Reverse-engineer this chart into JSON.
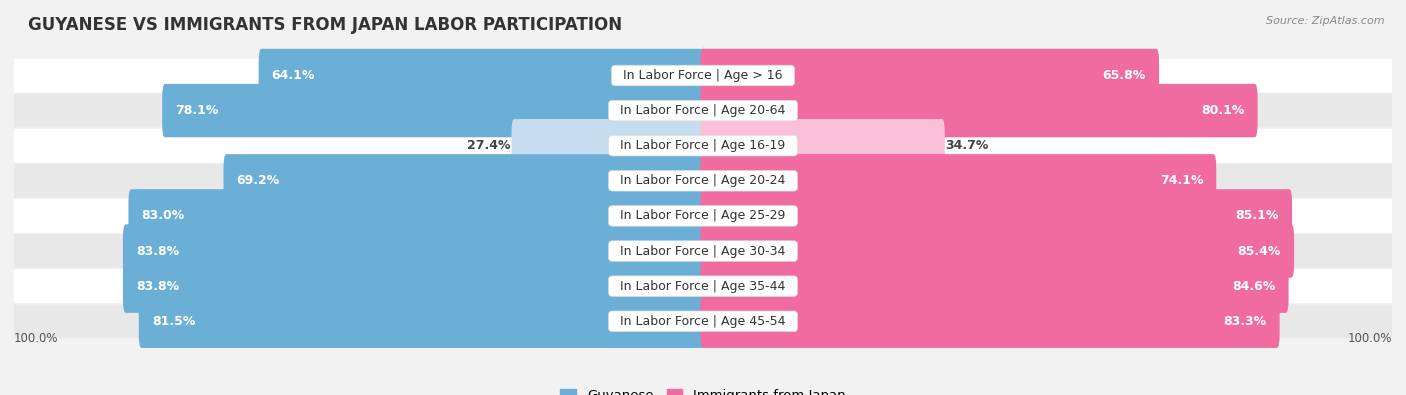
{
  "title": "GUYANESE VS IMMIGRANTS FROM JAPAN LABOR PARTICIPATION",
  "source": "Source: ZipAtlas.com",
  "categories": [
    "In Labor Force | Age > 16",
    "In Labor Force | Age 20-64",
    "In Labor Force | Age 16-19",
    "In Labor Force | Age 20-24",
    "In Labor Force | Age 25-29",
    "In Labor Force | Age 30-34",
    "In Labor Force | Age 35-44",
    "In Labor Force | Age 45-54"
  ],
  "guyanese_values": [
    64.1,
    78.1,
    27.4,
    69.2,
    83.0,
    83.8,
    83.8,
    81.5
  ],
  "japan_values": [
    65.8,
    80.1,
    34.7,
    74.1,
    85.1,
    85.4,
    84.6,
    83.3
  ],
  "guyanese_color": "#6BAED6",
  "japan_color": "#F06BA0",
  "guyanese_light_color": "#C6DCEF",
  "japan_light_color": "#FAC0D8",
  "background_color": "#f2f2f2",
  "row_bg_even": "#ffffff",
  "row_bg_odd": "#e8e8e8",
  "center_line_color": "#cccccc",
  "max_value": 100.0,
  "bar_height": 0.72,
  "label_fontsize": 9.0,
  "title_fontsize": 12,
  "legend_fontsize": 9.5,
  "axis_label_fontsize": 8.5,
  "value_fontsize": 9.0
}
